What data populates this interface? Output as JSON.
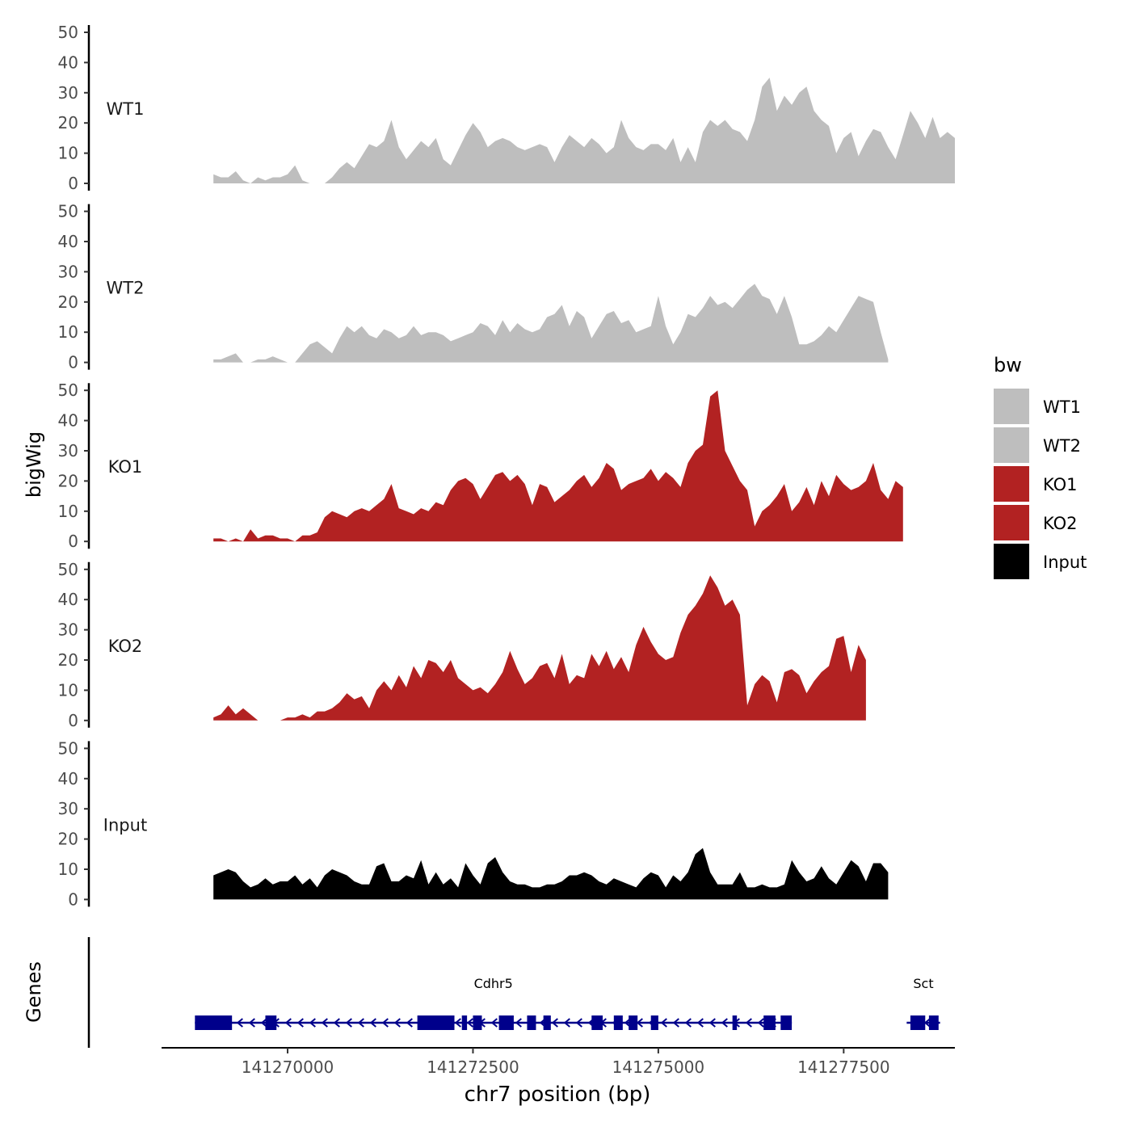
{
  "chart_data": {
    "type": "area",
    "ylabel": "bigWig",
    "xlabel": "chr7 position (bp)",
    "xlim": [
      141268300,
      141279000
    ],
    "ylim": [
      0,
      50
    ],
    "y_ticks": [
      "0",
      "10",
      "20",
      "30",
      "40",
      "50"
    ],
    "x_ticks": [
      {
        "value": 141270000,
        "label": "141270000"
      },
      {
        "value": 141272500,
        "label": "141272500"
      },
      {
        "value": 141275000,
        "label": "141275000"
      },
      {
        "value": 141277500,
        "label": "141277500"
      }
    ],
    "legend": {
      "title": "bw",
      "position": "right",
      "entries": [
        {
          "label": "WT1",
          "color": "#bebebe"
        },
        {
          "label": "WT2",
          "color": "#bebebe"
        },
        {
          "label": "KO1",
          "color": "#b22222"
        },
        {
          "label": "KO2",
          "color": "#b22222"
        },
        {
          "label": "Input",
          "color": "#000000"
        }
      ]
    },
    "series": [
      {
        "name": "WT1",
        "color": "#bebebe",
        "x_start": 141269000,
        "x_step": 100,
        "values": [
          3,
          2,
          2,
          4,
          1,
          0,
          2,
          1,
          2,
          2,
          3,
          6,
          1,
          0,
          0,
          0,
          2,
          5,
          7,
          5,
          9,
          13,
          12,
          14,
          21,
          12,
          8,
          11,
          14,
          12,
          15,
          8,
          6,
          11,
          16,
          20,
          17,
          12,
          14,
          15,
          14,
          12,
          11,
          12,
          13,
          12,
          7,
          12,
          16,
          14,
          12,
          15,
          13,
          10,
          12,
          21,
          15,
          12,
          11,
          13,
          13,
          11,
          15,
          7,
          12,
          7,
          17,
          21,
          19,
          21,
          18,
          17,
          14,
          21,
          32,
          35,
          24,
          29,
          26,
          30,
          32,
          24,
          21,
          19,
          10,
          15,
          17,
          9,
          14,
          18,
          17,
          12,
          8,
          16,
          24,
          20,
          15,
          22,
          15,
          17,
          15
        ]
      },
      {
        "name": "WT2",
        "color": "#bebebe",
        "x_start": 141269000,
        "x_step": 100,
        "values": [
          1,
          1,
          2,
          3,
          0,
          0,
          1,
          1,
          2,
          1,
          0,
          0,
          3,
          6,
          7,
          5,
          3,
          8,
          12,
          10,
          12,
          9,
          8,
          11,
          10,
          8,
          9,
          12,
          9,
          10,
          10,
          9,
          7,
          8,
          9,
          10,
          13,
          12,
          9,
          14,
          10,
          13,
          11,
          10,
          11,
          15,
          16,
          19,
          12,
          17,
          15,
          8,
          12,
          16,
          17,
          13,
          14,
          10,
          11,
          12,
          22,
          12,
          6,
          10,
          16,
          15,
          18,
          22,
          19,
          20,
          18,
          21,
          24,
          26,
          22,
          21,
          16,
          22,
          15,
          6,
          6,
          7,
          9,
          12,
          10,
          14,
          18,
          22,
          21,
          20,
          10,
          1
        ]
      },
      {
        "name": "KO1",
        "color": "#b22222",
        "x_start": 141269000,
        "x_step": 100,
        "values": [
          1,
          1,
          0,
          1,
          0,
          4,
          1,
          2,
          2,
          1,
          1,
          0,
          2,
          2,
          3,
          8,
          10,
          9,
          8,
          10,
          11,
          10,
          12,
          14,
          19,
          11,
          10,
          9,
          11,
          10,
          13,
          12,
          17,
          20,
          21,
          19,
          14,
          18,
          22,
          23,
          20,
          22,
          19,
          12,
          19,
          18,
          13,
          15,
          17,
          20,
          22,
          18,
          21,
          26,
          24,
          17,
          19,
          20,
          21,
          24,
          20,
          23,
          21,
          18,
          26,
          30,
          32,
          48,
          50,
          30,
          25,
          20,
          17,
          5,
          10,
          12,
          15,
          19,
          10,
          13,
          18,
          12,
          20,
          15,
          22,
          19,
          17,
          18,
          20,
          26,
          17,
          14,
          20,
          18
        ]
      },
      {
        "name": "KO2",
        "color": "#b22222",
        "x_start": 141269000,
        "x_step": 100,
        "values": [
          1,
          2,
          5,
          2,
          4,
          2,
          0,
          0,
          0,
          0,
          1,
          1,
          2,
          1,
          3,
          3,
          4,
          6,
          9,
          7,
          8,
          4,
          10,
          13,
          10,
          15,
          11,
          18,
          14,
          20,
          19,
          16,
          20,
          14,
          12,
          10,
          11,
          9,
          12,
          16,
          23,
          17,
          12,
          14,
          18,
          19,
          14,
          22,
          12,
          15,
          14,
          22,
          18,
          23,
          17,
          21,
          16,
          25,
          31,
          26,
          22,
          20,
          21,
          29,
          35,
          38,
          42,
          48,
          44,
          38,
          40,
          35,
          5,
          12,
          15,
          13,
          6,
          16,
          17,
          15,
          9,
          13,
          16,
          18,
          27,
          28,
          16,
          25,
          20
        ]
      },
      {
        "name": "Input",
        "color": "#000000",
        "x_start": 141269000,
        "x_step": 100,
        "values": [
          8,
          9,
          10,
          9,
          6,
          4,
          5,
          7,
          5,
          6,
          6,
          8,
          5,
          7,
          4,
          8,
          10,
          9,
          8,
          6,
          5,
          5,
          11,
          12,
          6,
          6,
          8,
          7,
          13,
          5,
          9,
          5,
          7,
          4,
          12,
          8,
          5,
          12,
          14,
          9,
          6,
          5,
          5,
          4,
          4,
          5,
          5,
          6,
          8,
          8,
          9,
          8,
          6,
          5,
          7,
          6,
          5,
          4,
          7,
          9,
          8,
          4,
          8,
          6,
          9,
          15,
          17,
          9,
          5,
          5,
          5,
          9,
          4,
          4,
          5,
          4,
          4,
          5,
          13,
          9,
          6,
          7,
          11,
          7,
          5,
          9,
          13,
          11,
          6,
          12,
          12,
          9
        ]
      }
    ],
    "genes_track": {
      "label": "Genes",
      "color": "#00008b",
      "genes": [
        {
          "name": "Cdhr5",
          "strand": "-",
          "start": 141268750,
          "end": 141276800,
          "exons": [
            [
              141268750,
              141269250
            ],
            [
              141269700,
              141269850
            ],
            [
              141271750,
              141272250
            ],
            [
              141272350,
              141272420
            ],
            [
              141272500,
              141272620
            ],
            [
              141272850,
              141273050
            ],
            [
              141273230,
              141273350
            ],
            [
              141273450,
              141273550
            ],
            [
              141274100,
              141274250
            ],
            [
              141274400,
              141274520
            ],
            [
              141274600,
              141274720
            ],
            [
              141274900,
              141275000
            ],
            [
              141276000,
              141276060
            ],
            [
              141276420,
              141276580
            ],
            [
              141276650,
              141276800
            ]
          ]
        },
        {
          "name": "Sct",
          "strand": "-",
          "start": 141278350,
          "end": 141278800,
          "exons": [
            [
              141278400,
              141278600
            ],
            [
              141278650,
              141278780
            ]
          ]
        }
      ]
    }
  }
}
